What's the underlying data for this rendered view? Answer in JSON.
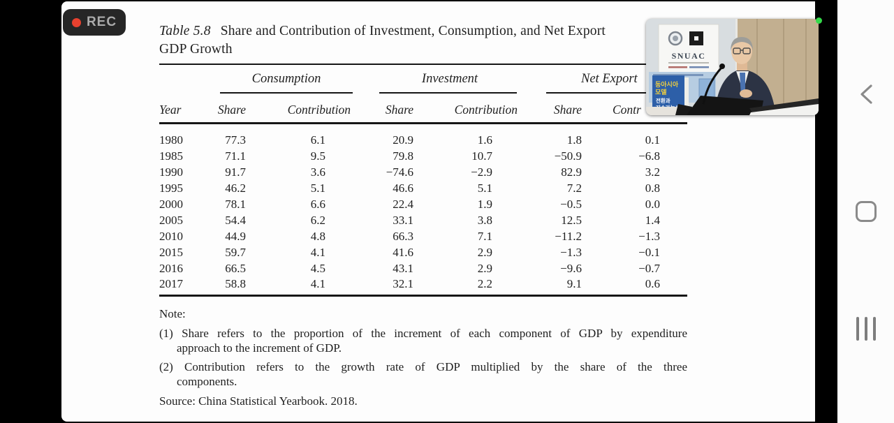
{
  "rec": {
    "label": "REC"
  },
  "slide": {
    "table_label": "Table 5.8",
    "title_rest": "Share and Contribution of Investment, Consumption, and Net Export",
    "title_line2": "GDP Growth",
    "note_label": "Note:",
    "note1_line1": "(1) Share refers to the proportion of the increment of each component of GDP by expenditure",
    "note1_line2": "approach to the increment of GDP.",
    "note2_line1": "(2) Contribution refers to the growth rate of GDP multiplied by the share of the three",
    "note2_line2": "components.",
    "source": "Source: China Statistical Yearbook. 2018."
  },
  "table": {
    "groups": [
      "Consumption",
      "Investment",
      "Net Export"
    ],
    "columns": [
      "Year",
      "Share",
      "Contribution",
      "Share",
      "Contribution",
      "Share",
      "Contr"
    ],
    "rows": [
      [
        "1980",
        "77.3",
        "6.1",
        "20.9",
        "1.6",
        "1.8",
        "0.1"
      ],
      [
        "1985",
        "71.1",
        "9.5",
        "79.8",
        "10.7",
        "−50.9",
        "−6.8"
      ],
      [
        "1990",
        "91.7",
        "3.6",
        "−74.6",
        "−2.9",
        "82.9",
        "3.2"
      ],
      [
        "1995",
        "46.2",
        "5.1",
        "46.6",
        "5.1",
        "7.2",
        "0.8"
      ],
      [
        "2000",
        "78.1",
        "6.6",
        "22.4",
        "1.9",
        "−0.5",
        "0.0"
      ],
      [
        "2005",
        "54.4",
        "6.2",
        "33.1",
        "3.8",
        "12.5",
        "1.4"
      ],
      [
        "2010",
        "44.9",
        "4.8",
        "66.3",
        "7.1",
        "−11.2",
        "−1.3"
      ],
      [
        "2015",
        "59.7",
        "4.1",
        "41.6",
        "2.9",
        "−1.3",
        "−0.1"
      ],
      [
        "2016",
        "66.5",
        "4.5",
        "43.1",
        "2.9",
        "−9.6",
        "−0.7"
      ],
      [
        "2017",
        "58.8",
        "4.1",
        "32.1",
        "2.2",
        "9.1",
        "0.6"
      ]
    ]
  },
  "pip": {
    "snuac": "SNUAC",
    "book_lines": [
      "동아시아",
      "모델",
      "전환과",
      "지속가능성"
    ]
  },
  "nav": {
    "back_icon": "chevron-left",
    "home_icon": "rounded-square-outline",
    "recents_icon": "three-vertical-bars"
  },
  "colors": {
    "rec_red": "#e8412f",
    "green_indicator": "#35d94a",
    "nav_icon_gray": "#8a8a8a",
    "slide_text": "#1f1f1f"
  }
}
